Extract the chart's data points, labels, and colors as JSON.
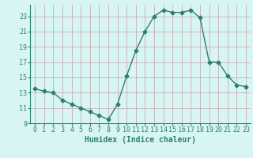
{
  "x": [
    0,
    1,
    2,
    3,
    4,
    5,
    6,
    7,
    8,
    9,
    10,
    11,
    12,
    13,
    14,
    15,
    16,
    17,
    18,
    19,
    20,
    21,
    22,
    23
  ],
  "y": [
    13.5,
    13.2,
    13.0,
    12.0,
    11.5,
    11.0,
    10.5,
    10.0,
    9.5,
    11.5,
    15.2,
    18.5,
    21.0,
    23.0,
    23.8,
    23.5,
    23.5,
    23.8,
    22.8,
    17.0,
    17.0,
    15.2,
    14.0,
    13.8
  ],
  "line_color": "#2e7f6e",
  "marker": "D",
  "marker_size": 2.5,
  "bg_color": "#d8f5f5",
  "grid_color": "#c8a0a0",
  "xlabel": "Humidex (Indice chaleur)",
  "xlim": [
    -0.5,
    23.5
  ],
  "ylim": [
    9,
    24.5
  ],
  "yticks": [
    9,
    11,
    13,
    15,
    17,
    19,
    21,
    23
  ],
  "xticks": [
    0,
    1,
    2,
    3,
    4,
    5,
    6,
    7,
    8,
    9,
    10,
    11,
    12,
    13,
    14,
    15,
    16,
    17,
    18,
    19,
    20,
    21,
    22,
    23
  ],
  "label_fontsize": 7,
  "tick_fontsize": 6
}
